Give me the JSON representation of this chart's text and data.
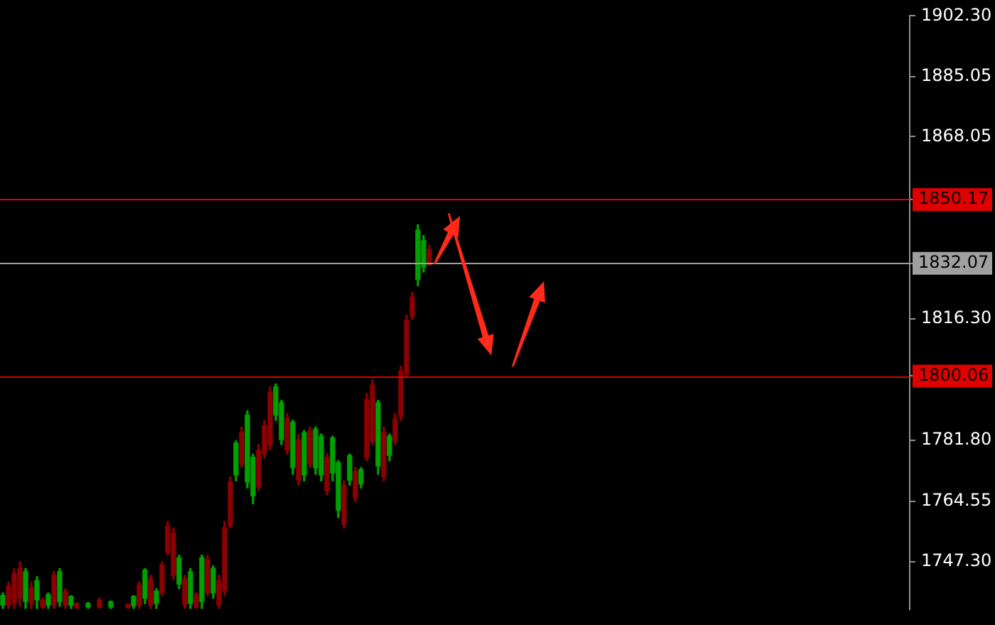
{
  "chart_data": {
    "type": "candlestick",
    "categories": [
      null,
      null,
      null,
      null,
      null,
      null,
      null,
      null,
      null,
      null,
      null,
      null,
      null,
      null,
      null,
      null,
      null,
      null,
      null,
      null,
      null,
      null,
      null,
      null,
      null,
      null,
      null,
      null,
      null,
      null,
      null,
      null,
      null,
      null,
      null,
      null,
      null,
      null,
      null,
      null,
      null,
      null,
      null,
      null,
      null,
      null,
      null,
      null,
      null,
      null,
      null,
      null,
      null,
      null,
      null,
      null,
      null,
      null,
      null,
      null,
      null,
      null,
      null,
      null,
      null,
      null,
      null,
      null,
      null,
      null,
      null,
      null,
      null,
      null,
      null,
      null,
      null,
      null,
      null,
      null,
      null,
      null,
      null,
      null,
      null,
      null,
      null,
      null,
      null,
      null,
      null,
      null,
      null,
      null,
      null,
      null,
      null,
      null,
      null,
      null,
      null,
      null,
      null,
      null,
      null,
      null,
      null,
      null,
      null,
      null,
      null,
      null,
      null,
      null,
      null,
      null,
      null,
      null,
      null,
      null,
      null,
      null,
      null,
      null,
      null,
      null,
      null,
      null,
      null,
      null,
      null,
      null,
      null,
      null,
      null,
      null,
      null,
      null,
      null,
      null,
      null,
      null,
      null,
      null,
      null,
      null,
      null,
      null,
      null,
      null,
      null,
      null,
      null,
      null,
      null,
      null,
      null,
      null,
      null,
      null
    ],
    "ohlc": [
      [
        1737.8,
        1738.5,
        1734.0,
        1735.0
      ],
      [
        1735.0,
        1741.6,
        1734.0,
        1740.5
      ],
      [
        1735.5,
        1745.4,
        1734.0,
        1744.0
      ],
      [
        1737.0,
        1747.3,
        1734.7,
        1745.5
      ],
      [
        1744.5,
        1745.4,
        1734.0,
        1736.0
      ],
      [
        1735.5,
        1741.6,
        1734.0,
        1740.0
      ],
      [
        1742.0,
        1743.1,
        1734.0,
        1736.5
      ],
      [
        1734.5,
        1737.0,
        1734.0,
        1736.5
      ],
      [
        1738.0,
        1738.5,
        1734.0,
        1735.0
      ],
      [
        1735.0,
        1744.6,
        1734.0,
        1743.5
      ],
      [
        1744.5,
        1745.4,
        1734.7,
        1736.0
      ],
      [
        1735.0,
        1739.7,
        1734.0,
        1739.0
      ],
      [
        1737.5,
        1737.7,
        1734.0,
        1735.0
      ],
      [
        1734.2,
        1735.8,
        1734.0,
        1735.5
      ],
      null,
      [
        1735.5,
        1735.8,
        1734.0,
        1734.5
      ],
      null,
      [
        1734.5,
        1737.0,
        1734.0,
        1736.5
      ],
      null,
      [
        1736.0,
        1736.2,
        1734.0,
        1734.5
      ],
      null,
      null,
      [
        1734.3,
        1735.4,
        1734.0,
        1735.2
      ],
      [
        1737.5,
        1737.7,
        1734.0,
        1734.8
      ],
      [
        1735.0,
        1741.6,
        1734.0,
        1740.8
      ],
      [
        1745.0,
        1745.4,
        1735.4,
        1737.0
      ],
      [
        1735.0,
        1743.5,
        1734.0,
        1742.5
      ],
      [
        1739.0,
        1739.7,
        1734.0,
        1735.5
      ],
      [
        1738.5,
        1747.3,
        1737.7,
        1746.5
      ],
      [
        1750.0,
        1758.8,
        1749.2,
        1757.5
      ],
      [
        1743.5,
        1756.9,
        1742.3,
        1755.5
      ],
      [
        1748.5,
        1749.2,
        1739.7,
        1741.0
      ],
      [
        1735.0,
        1743.5,
        1734.0,
        1742.5
      ],
      [
        1744.5,
        1745.4,
        1734.0,
        1735.5
      ],
      [
        1734.5,
        1738.5,
        1734.0,
        1738.0
      ],
      [
        1748.5,
        1749.2,
        1734.0,
        1736.0
      ],
      [
        1738.5,
        1749.2,
        1737.7,
        1748.0
      ],
      [
        1745.5,
        1746.2,
        1737.0,
        1738.5
      ],
      [
        1735.0,
        1743.5,
        1734.0,
        1742.0
      ],
      [
        1739.0,
        1758.8,
        1737.7,
        1757.0
      ],
      [
        1757.5,
        1771.4,
        1756.9,
        1770.0
      ],
      [
        1781.0,
        1781.7,
        1770.3,
        1772.0
      ],
      [
        1775.0,
        1785.6,
        1774.1,
        1784.0
      ],
      [
        1789.0,
        1790.2,
        1768.3,
        1770.0
      ],
      [
        1777.0,
        1777.9,
        1763.8,
        1766.0
      ],
      [
        1768.5,
        1780.6,
        1767.6,
        1779.0
      ],
      [
        1778.0,
        1787.5,
        1776.8,
        1786.0
      ],
      [
        1780.5,
        1797.0,
        1779.1,
        1795.5
      ],
      [
        1797.0,
        1797.8,
        1787.5,
        1789.0
      ],
      [
        1792.5,
        1793.2,
        1780.6,
        1782.0
      ],
      [
        1779.0,
        1789.4,
        1777.9,
        1788.0
      ],
      [
        1787.0,
        1787.5,
        1772.2,
        1774.0
      ],
      [
        1770.5,
        1783.6,
        1769.1,
        1782.0
      ],
      [
        1784.0,
        1784.6,
        1770.3,
        1772.0
      ],
      [
        1775.0,
        1785.6,
        1774.1,
        1784.5
      ],
      [
        1785.0,
        1785.6,
        1772.2,
        1774.0
      ],
      [
        1783.0,
        1783.6,
        1770.3,
        1772.0
      ],
      [
        1767.5,
        1777.9,
        1766.4,
        1777.0
      ],
      [
        1782.5,
        1783.0,
        1770.3,
        1772.5
      ],
      [
        1775.5,
        1776.0,
        1759.9,
        1762.0
      ],
      [
        1758.0,
        1770.3,
        1756.9,
        1769.0
      ],
      [
        1777.5,
        1777.9,
        1769.1,
        1770.5
      ],
      [
        1765.5,
        1774.1,
        1764.5,
        1773.0
      ],
      [
        1773.5,
        1774.1,
        1768.3,
        1769.5
      ],
      [
        1777.0,
        1795.1,
        1776.0,
        1793.5
      ],
      [
        1781.5,
        1799.0,
        1780.6,
        1797.5
      ],
      [
        1792.5,
        1793.2,
        1772.2,
        1774.5
      ],
      [
        1771.5,
        1785.6,
        1770.3,
        1784.0
      ],
      [
        1783.0,
        1783.6,
        1776.0,
        1777.5
      ],
      [
        1781.5,
        1789.4,
        1780.6,
        1788.0
      ],
      [
        1788.5,
        1802.8,
        1787.5,
        1801.5
      ],
      [
        1800.5,
        1817.3,
        1799.7,
        1816.0
      ],
      [
        1817.0,
        1823.8,
        1816.2,
        1822.5
      ],
      [
        1841.5,
        1843.0,
        1825.7,
        1827.5
      ],
      [
        1838.5,
        1839.9,
        1829.6,
        1831.0
      ],
      [
        1831.5,
        1837.2,
        1831.5,
        1836.0
      ],
      null,
      null,
      null,
      null,
      null,
      null,
      null,
      null,
      null,
      null,
      null,
      null,
      null,
      null,
      null,
      null,
      null,
      null,
      null,
      null,
      null,
      null,
      null,
      null,
      null,
      null,
      null,
      null,
      null,
      null,
      null,
      null,
      null,
      null,
      null,
      null,
      null,
      null,
      null,
      null,
      null,
      null,
      null,
      null,
      null,
      null,
      null,
      null,
      null,
      null,
      null,
      null,
      null,
      null,
      null,
      null,
      null,
      null,
      null,
      null,
      null,
      null,
      null,
      null,
      null,
      null,
      null,
      null,
      null,
      null,
      null,
      null,
      null,
      null,
      null,
      null,
      null,
      null,
      null,
      null,
      null,
      null,
      null,
      null
    ],
    "colors": [
      "#00a000",
      "#8b0000",
      "#8b0000",
      "#8b0000",
      "#00a000",
      "#8b0000",
      "#00a000",
      "#8b0000",
      "#00a000",
      "#8b0000",
      "#00a000",
      "#8b0000",
      "#00a000",
      "#8b0000",
      null,
      "#00a000",
      null,
      "#8b0000",
      null,
      "#00a000",
      null,
      null,
      "#8b0000",
      "#00a000",
      "#8b0000",
      "#00a000",
      "#8b0000",
      "#00a000",
      "#8b0000",
      "#8b0000",
      "#8b0000",
      "#00a000",
      "#8b0000",
      "#00a000",
      "#8b0000",
      "#00a000",
      "#8b0000",
      "#00a000",
      "#8b0000",
      "#8b0000",
      "#8b0000",
      "#00a000",
      "#8b0000",
      "#00a000",
      "#00a000",
      "#8b0000",
      "#8b0000",
      "#8b0000",
      "#00a000",
      "#00a000",
      "#8b0000",
      "#00a000",
      "#8b0000",
      "#00a000",
      "#8b0000",
      "#00a000",
      "#00a000",
      "#8b0000",
      "#00a000",
      "#00a000",
      "#8b0000",
      "#00a000",
      "#8b0000",
      "#00a000",
      "#8b0000",
      "#8b0000",
      "#00a000",
      "#8b0000",
      "#00a000",
      "#8b0000",
      "#8b0000",
      "#8b0000",
      "#8b0000",
      "#00a000",
      "#00a000",
      "#8b0000",
      null,
      null,
      null,
      null,
      null,
      null,
      null,
      null,
      null,
      null,
      null,
      null,
      null,
      null,
      null,
      null,
      null,
      null,
      null,
      null,
      null,
      null,
      null,
      null,
      null,
      null,
      null,
      null,
      null,
      null,
      null,
      null,
      null,
      null,
      null,
      null,
      null,
      null,
      null,
      null,
      null,
      null,
      null,
      null,
      null,
      null,
      null,
      null,
      null,
      null,
      null,
      null,
      null,
      null,
      null,
      null,
      null,
      null,
      null,
      null,
      null,
      null,
      null,
      null,
      null,
      null,
      null,
      null,
      null,
      null,
      null,
      null,
      null,
      null,
      null,
      null,
      null,
      null,
      null,
      null,
      null,
      null,
      null,
      null
    ],
    "ylim": [
      1733.9,
      1902.3
    ],
    "yticks": [
      {
        "value": 1747.3,
        "label": "1747.30"
      },
      1764.55,
      {
        "value": 1781.8,
        "label": "1781.80"
      },
      1800.06,
      {
        "value": 1816.3,
        "label": "1816.30"
      },
      1832.07,
      1850.17,
      1868.05,
      1885.05,
      {
        "value": 1902.3,
        "label": "1902.30"
      }
    ],
    "ref_lines": [
      {
        "axis": "y",
        "value": 1850.17,
        "label": "1850.17",
        "color": "#e00000"
      },
      {
        "axis": "y",
        "value": 1832.07,
        "label": "1832.07",
        "color": "#a0a0a0"
      },
      {
        "axis": "y",
        "value": 1800.06,
        "label": "1800.06",
        "color": "#e00000"
      }
    ],
    "legend": false
  }
}
